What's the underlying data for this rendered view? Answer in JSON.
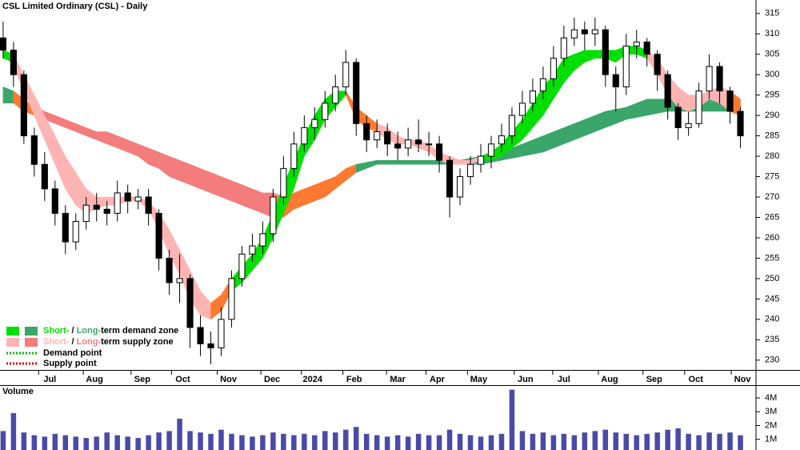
{
  "chart_data": {
    "type": "candlestick",
    "title": "CSL Limited Ordinary (CSL) - Daily",
    "x": [
      0,
      1,
      2,
      3,
      4,
      5,
      6,
      7,
      8,
      9,
      10,
      11,
      12,
      13,
      14,
      15,
      16,
      17,
      18,
      19,
      20,
      21,
      22,
      23,
      24,
      25,
      26,
      27,
      28,
      29,
      30,
      31,
      32,
      33,
      34,
      35,
      36,
      37,
      38,
      39,
      40,
      41,
      42,
      43,
      44,
      45,
      46,
      47,
      48,
      49,
      50,
      51,
      52,
      53,
      54,
      55,
      56,
      57,
      58,
      59,
      60,
      61,
      62,
      63,
      64,
      65,
      66,
      67,
      68,
      69,
      70,
      71
    ],
    "open": [
      309,
      306,
      300,
      285,
      278,
      272,
      266,
      259,
      264,
      268,
      267,
      266,
      271,
      269,
      270,
      266,
      255,
      249,
      250,
      238,
      234,
      233,
      240,
      250,
      256,
      258,
      261,
      270,
      277,
      283,
      287,
      289,
      293,
      297,
      303,
      288,
      284,
      286,
      283,
      282,
      284,
      283,
      283,
      279,
      270,
      275,
      278,
      280,
      283,
      285,
      290,
      293,
      296,
      299,
      304,
      309,
      311,
      310,
      311,
      300,
      297,
      307,
      308,
      305,
      300,
      292,
      287,
      288,
      296,
      302,
      296,
      291
    ],
    "high": [
      313,
      308,
      301,
      287,
      281,
      274,
      268,
      266,
      270,
      271,
      269,
      274,
      273,
      272,
      272,
      267,
      257,
      256,
      251,
      241,
      237,
      243,
      252,
      258,
      261,
      264,
      272,
      280,
      286,
      290,
      292,
      296,
      300,
      306,
      304,
      290,
      289,
      288,
      286,
      287,
      289,
      286,
      285,
      280,
      277,
      280,
      283,
      285,
      288,
      292,
      296,
      299,
      302,
      307,
      312,
      314,
      313,
      314,
      312,
      302,
      310,
      311,
      309,
      306,
      301,
      293,
      291,
      298,
      305,
      303,
      297,
      292
    ],
    "low": [
      304,
      297,
      283,
      275,
      269,
      263,
      256,
      257,
      262,
      264,
      263,
      264,
      266,
      267,
      263,
      252,
      246,
      244,
      233,
      231,
      229,
      231,
      238,
      248,
      254,
      256,
      259,
      268,
      275,
      281,
      284,
      287,
      291,
      295,
      285,
      281,
      282,
      280,
      279,
      280,
      281,
      280,
      276,
      265,
      268,
      273,
      276,
      277,
      281,
      283,
      288,
      291,
      294,
      297,
      302,
      307,
      306,
      307,
      297,
      291,
      295,
      304,
      302,
      296,
      289,
      284,
      285,
      287,
      294,
      293,
      288,
      282
    ],
    "close": [
      306,
      300,
      285,
      278,
      272,
      266,
      259,
      264,
      268,
      267,
      266,
      271,
      269,
      270,
      266,
      255,
      249,
      250,
      238,
      234,
      233,
      240,
      250,
      256,
      258,
      261,
      270,
      277,
      283,
      287,
      289,
      293,
      297,
      303,
      288,
      284,
      286,
      283,
      282,
      284,
      283,
      283,
      279,
      270,
      275,
      278,
      280,
      283,
      285,
      290,
      293,
      296,
      299,
      304,
      309,
      311,
      310,
      311,
      300,
      297,
      307,
      308,
      305,
      300,
      292,
      287,
      288,
      296,
      302,
      296,
      291,
      285
    ],
    "up_color": "#ffffff",
    "down_color": "#000000",
    "xlim": [
      -0.3,
      72.5
    ],
    "xticks": [
      {
        "value": 4.5,
        "label": "Jul"
      },
      {
        "value": 8.8,
        "label": "Aug"
      },
      {
        "value": 13.4,
        "label": "Sep"
      },
      {
        "value": 17.3,
        "label": "Oct"
      },
      {
        "value": 21.7,
        "label": "Nov"
      },
      {
        "value": 25.9,
        "label": "Dec"
      },
      {
        "value": 29.8,
        "label": "2024"
      },
      {
        "value": 33.8,
        "label": "Feb"
      },
      {
        "value": 38.0,
        "label": "Mar"
      },
      {
        "value": 41.8,
        "label": "Apr"
      },
      {
        "value": 45.8,
        "label": "May"
      },
      {
        "value": 50.3,
        "label": "Jun"
      },
      {
        "value": 54.0,
        "label": "Jul"
      },
      {
        "value": 58.4,
        "label": "Aug"
      },
      {
        "value": 62.7,
        "label": "Sep"
      },
      {
        "value": 66.7,
        "label": "Oct"
      },
      {
        "value": 71.2,
        "label": "Nov"
      }
    ],
    "ylim": [
      227.6,
      318.3
    ],
    "yticks": [
      230,
      235,
      240,
      245,
      250,
      255,
      260,
      265,
      270,
      275,
      280,
      285,
      290,
      295,
      300,
      305,
      310,
      315
    ],
    "bands": [
      {
        "color": "#3aa66a",
        "x": [
          0,
          1
        ],
        "upper": [
          297,
          296
        ],
        "lower": [
          293,
          293
        ]
      },
      {
        "color": "#ff7a30",
        "x": [
          1,
          2,
          3
        ],
        "upper": [
          296,
          294,
          292
        ],
        "lower": [
          293,
          291,
          290
        ]
      },
      {
        "color": "#f47c7c",
        "x": [
          3,
          4,
          5,
          6,
          7,
          8,
          9,
          10,
          11,
          12,
          13,
          14,
          15,
          16,
          17,
          18,
          19,
          20,
          21,
          22,
          23,
          24,
          25,
          26,
          27
        ],
        "upper": [
          292,
          291,
          290,
          289,
          288,
          287,
          286,
          286,
          285,
          284,
          283,
          282,
          281,
          280,
          279,
          278,
          277,
          276,
          275,
          274,
          273,
          272,
          271,
          271,
          270
        ],
        "lower": [
          290,
          289,
          288,
          287,
          286,
          285,
          284,
          283,
          282,
          281,
          280,
          278,
          277,
          275,
          274,
          273,
          272,
          271,
          270,
          269,
          268,
          267,
          266,
          265,
          265
        ]
      },
      {
        "color": "#ff7a30",
        "x": [
          27,
          28,
          29,
          30,
          31,
          32,
          33,
          34
        ],
        "upper": [
          270,
          271,
          272,
          273,
          274,
          275,
          277,
          278
        ],
        "lower": [
          265,
          267,
          268,
          269,
          270,
          272,
          274,
          276
        ]
      },
      {
        "color": "#3aa66a",
        "x": [
          34,
          36,
          38,
          40,
          42,
          44,
          46,
          48,
          50,
          52,
          54,
          56,
          58,
          60,
          62,
          64,
          66,
          68,
          70,
          71
        ],
        "upper": [
          278,
          279,
          279,
          279,
          279,
          279,
          280,
          281,
          283,
          285,
          287,
          289,
          291,
          292,
          294,
          294,
          294,
          294,
          293,
          293
        ],
        "lower": [
          276,
          278,
          278,
          278,
          278,
          278,
          278,
          279,
          280,
          281,
          283,
          285,
          287,
          289,
          290,
          291,
          291,
          291,
          291,
          290
        ]
      },
      {
        "color": "#00e000",
        "x": [
          0,
          1
        ],
        "upper": [
          306,
          305
        ],
        "lower": [
          304,
          303
        ]
      },
      {
        "color": "#ffb4b4",
        "x": [
          1,
          2,
          3,
          4,
          5,
          6,
          7,
          8,
          9,
          10,
          11,
          12,
          13,
          14,
          15,
          16,
          17,
          18,
          19,
          20
        ],
        "upper": [
          305,
          300,
          295,
          290,
          285,
          280,
          276,
          272,
          270,
          270,
          270,
          270,
          270,
          269,
          266,
          262,
          257,
          252,
          247,
          244
        ],
        "lower": [
          302,
          296,
          290,
          284,
          278,
          272,
          268,
          266,
          267,
          268,
          268,
          269,
          269,
          267,
          262,
          256,
          251,
          245,
          241,
          240
        ]
      },
      {
        "color": "#ff7a30",
        "x": [
          20,
          21,
          22
        ],
        "upper": [
          244,
          246,
          250
        ],
        "lower": [
          240,
          242,
          247
        ]
      },
      {
        "color": "#00e000",
        "x": [
          22,
          23,
          24,
          25,
          26,
          27,
          28,
          29,
          30,
          31,
          32,
          33
        ],
        "upper": [
          250,
          253,
          256,
          260,
          266,
          273,
          279,
          285,
          290,
          294,
          296,
          296
        ],
        "lower": [
          247,
          249,
          252,
          255,
          260,
          266,
          272,
          280,
          284,
          289,
          292,
          295
        ]
      },
      {
        "color": "#ff7a30",
        "x": [
          33,
          34,
          35,
          36
        ],
        "upper": [
          296,
          292,
          290,
          288
        ],
        "lower": [
          295,
          289,
          287,
          286
        ]
      },
      {
        "color": "#ffb4b4",
        "x": [
          36,
          37,
          38,
          39,
          40,
          41,
          42,
          43,
          44,
          45,
          46
        ],
        "upper": [
          288,
          287,
          285,
          284,
          284,
          283,
          281,
          280,
          279,
          279,
          280
        ],
        "lower": [
          286,
          284,
          283,
          283,
          282,
          281,
          279,
          278,
          278,
          278,
          279
        ]
      },
      {
        "color": "#00e000",
        "x": [
          46,
          47,
          48,
          49,
          50,
          51,
          52,
          53,
          54,
          55,
          56,
          57,
          58,
          59,
          60,
          61,
          62
        ],
        "upper": [
          280,
          281,
          283,
          286,
          289,
          293,
          297,
          300,
          304,
          305,
          306,
          306,
          306,
          306,
          307,
          307,
          306
        ],
        "lower": [
          279,
          279,
          280,
          282,
          284,
          287,
          290,
          294,
          298,
          301,
          303,
          304,
          304,
          303,
          305,
          305,
          304
        ]
      },
      {
        "color": "#ffb4b4",
        "x": [
          62,
          63,
          64,
          65,
          66,
          67,
          68,
          69,
          70
        ],
        "upper": [
          306,
          304,
          300,
          297,
          295,
          295,
          296,
          297,
          296
        ],
        "lower": [
          304,
          300,
          295,
          292,
          291,
          292,
          294,
          293,
          291
        ]
      },
      {
        "color": "#ff7a30",
        "x": [
          70,
          71
        ],
        "upper": [
          296,
          294
        ],
        "lower": [
          291,
          290
        ]
      }
    ],
    "legend": {
      "zones": [
        {
          "short_color": "#00e000",
          "long_color": "#3aa66a",
          "short": "Short-",
          "sep": " / ",
          "long": "Long-",
          "rest": "term demand zone"
        },
        {
          "short_color": "#ffb4b4",
          "long_color": "#f47c7c",
          "short": "Short-",
          "sep": " / ",
          "long": "Long-",
          "rest": "term supply zone"
        }
      ],
      "points": [
        {
          "color": "#00c000",
          "label": "Demand point"
        },
        {
          "color": "#e00000",
          "label": "Supply point"
        }
      ]
    },
    "volume": {
      "label": "Volume",
      "color": "#4a4aa8",
      "values": [
        1.6,
        2.9,
        1.5,
        1.3,
        1.2,
        1.4,
        1.3,
        1.2,
        1.1,
        1.2,
        1.5,
        1.3,
        1.2,
        1.1,
        1.3,
        1.5,
        1.6,
        2.5,
        1.6,
        1.5,
        1.4,
        1.7,
        1.4,
        1.3,
        1.2,
        1.3,
        1.5,
        1.4,
        1.3,
        1.4,
        1.3,
        1.6,
        1.5,
        1.7,
        1.9,
        1.4,
        1.3,
        1.2,
        1.3,
        1.2,
        1.4,
        1.3,
        1.3,
        1.7,
        1.4,
        1.3,
        1.2,
        1.3,
        1.4,
        4.6,
        1.6,
        1.4,
        1.5,
        1.3,
        1.4,
        1.3,
        1.5,
        1.6,
        1.7,
        1.5,
        1.4,
        1.3,
        1.4,
        1.5,
        1.7,
        1.8,
        1.4,
        1.3,
        1.5,
        1.4,
        1.5,
        1.3
      ],
      "ylim": [
        0.23,
        4.87
      ],
      "yticks": [
        {
          "value": 1,
          "label": "1M"
        },
        {
          "value": 2,
          "label": "2M"
        },
        {
          "value": 3,
          "label": "3M"
        },
        {
          "value": 4,
          "label": "4M"
        }
      ]
    }
  }
}
